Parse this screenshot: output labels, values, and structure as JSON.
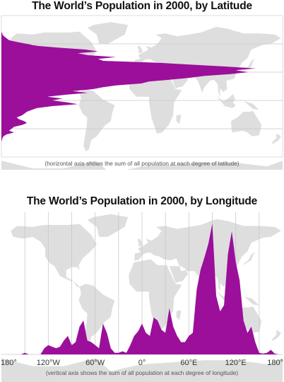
{
  "colors": {
    "population": "#9b0f9b",
    "land": "#dedede",
    "grid": "#c8c8c8"
  },
  "chart_data": [
    {
      "type": "area",
      "orientation": "horizontal",
      "title": "The World’s Population in 2000, by Latitude",
      "note": "(horizontal axis shows the sum of all population at each degree of latitude)",
      "ylim": [
        -60,
        90
      ],
      "y": [
        72,
        70,
        68,
        66,
        64,
        62,
        60,
        58,
        56,
        54,
        52,
        50,
        48,
        46,
        44,
        42,
        40,
        38,
        36,
        34,
        32,
        30,
        28,
        26,
        24,
        22,
        20,
        18,
        16,
        14,
        12,
        10,
        8,
        6,
        4,
        2,
        0,
        -2,
        -4,
        -6,
        -8,
        -10,
        -12,
        -14,
        -16,
        -18,
        -20,
        -22,
        -24,
        -26,
        -28,
        -30,
        -32,
        -34,
        -36,
        -38,
        -40,
        -42,
        -44
      ],
      "values": [
        0.3,
        0.4,
        1,
        2,
        3,
        6,
        10,
        14,
        22,
        33,
        38,
        30,
        34,
        45,
        38,
        40,
        62,
        74,
        88,
        100,
        92,
        97,
        90,
        80,
        74,
        66,
        58,
        55,
        45,
        40,
        36,
        28,
        34,
        25,
        18,
        24,
        20,
        26,
        30,
        20,
        14,
        12,
        10,
        9,
        8,
        6,
        7,
        9,
        10,
        8,
        5,
        4,
        3,
        5,
        2,
        0.8,
        0.4,
        0.2,
        0
      ]
    },
    {
      "type": "area",
      "title": "The World’s Population in 2000, by Longitude",
      "note": "(vertical axis shows the sum of all population at each degree of longitude)",
      "xlim": [
        -180,
        180
      ],
      "tick_labels": [
        "180°",
        "120°W",
        "60°W",
        "0°",
        "60°E",
        "120°E",
        "180°"
      ],
      "x": [
        -180,
        -175,
        -170,
        -165,
        -160,
        -155,
        -150,
        -145,
        -140,
        -135,
        -130,
        -125,
        -120,
        -115,
        -110,
        -105,
        -100,
        -95,
        -90,
        -85,
        -80,
        -75,
        -70,
        -65,
        -60,
        -55,
        -50,
        -45,
        -40,
        -35,
        -30,
        -25,
        -20,
        -15,
        -10,
        -5,
        0,
        5,
        10,
        15,
        20,
        25,
        30,
        35,
        40,
        45,
        50,
        55,
        60,
        65,
        70,
        75,
        80,
        85,
        90,
        95,
        100,
        105,
        110,
        115,
        120,
        125,
        130,
        135,
        140,
        145,
        150,
        155,
        160,
        165,
        170,
        175,
        180
      ],
      "values": [
        0,
        0,
        0,
        0,
        0,
        0,
        1,
        0,
        0,
        0,
        0,
        4,
        6,
        5,
        4,
        5,
        9,
        12,
        6,
        8,
        18,
        22,
        9,
        8,
        6,
        4,
        20,
        14,
        4,
        1,
        1,
        2,
        1,
        6,
        12,
        15,
        20,
        14,
        12,
        24,
        22,
        16,
        14,
        30,
        18,
        12,
        8,
        8,
        12,
        14,
        42,
        55,
        63,
        72,
        85,
        38,
        28,
        32,
        65,
        80,
        60,
        48,
        22,
        14,
        18,
        8,
        1,
        0.5,
        1,
        3,
        0.5,
        0,
        0
      ]
    }
  ]
}
